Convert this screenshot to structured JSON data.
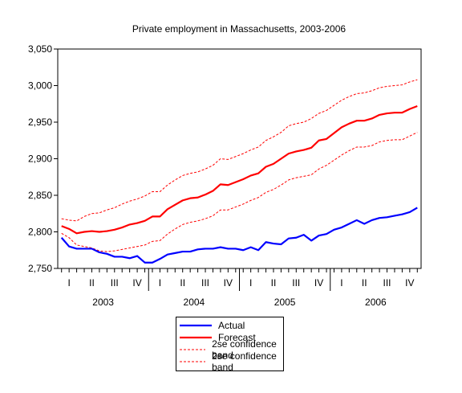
{
  "chart_data": {
    "type": "line",
    "title": "Private employment in Massachusetts, 2003-2006",
    "xlabel": "",
    "ylabel": "",
    "ylim": [
      2750,
      3050
    ],
    "y_ticks": [
      "2,750",
      "2,800",
      "2,850",
      "2,900",
      "2,950",
      "3,000",
      "3,050"
    ],
    "x_quarter_labels": [
      "I",
      "II",
      "III",
      "IV",
      "I",
      "II",
      "III",
      "IV",
      "I",
      "II",
      "III",
      "IV",
      "I",
      "II",
      "III",
      "IV"
    ],
    "x_year_labels": [
      "2003",
      "2004",
      "2005",
      "2006"
    ],
    "grid": false,
    "legend_position": "bottom",
    "x_start": "2003-01",
    "series": [
      {
        "name": "Actual",
        "color": "#0000ff",
        "style": "solid",
        "values": [
          2792,
          2780,
          2777,
          2777,
          2777,
          2772,
          2770,
          2766,
          2766,
          2764,
          2767,
          2758,
          2758,
          2763,
          2769,
          2771,
          2773,
          2773,
          2776,
          2777,
          2777,
          2779,
          2777,
          2777,
          2775,
          2779,
          2775,
          2786,
          2784,
          2783,
          2791,
          2792,
          2796,
          2788,
          2795,
          2797,
          2803,
          2806,
          2811,
          2816,
          2811,
          2816,
          2819,
          2820,
          2822,
          2824,
          2827,
          2833
        ]
      },
      {
        "name": "Forecast",
        "color": "#ff0000",
        "style": "solid",
        "values": [
          2808,
          2804,
          2798,
          2800,
          2801,
          2800,
          2801,
          2803,
          2806,
          2810,
          2812,
          2815,
          2821,
          2821,
          2831,
          2837,
          2843,
          2846,
          2847,
          2851,
          2856,
          2865,
          2864,
          2868,
          2872,
          2877,
          2880,
          2889,
          2893,
          2900,
          2907,
          2910,
          2912,
          2915,
          2925,
          2927,
          2935,
          2943,
          2948,
          2952,
          2952,
          2955,
          2960,
          2962,
          2963,
          2963,
          2968,
          2972
        ]
      },
      {
        "name": "2se confidence band",
        "color": "#ff0000",
        "style": "dashed",
        "values": [
          2818,
          2816,
          2815,
          2821,
          2825,
          2826,
          2830,
          2833,
          2838,
          2842,
          2845,
          2849,
          2855,
          2855,
          2864,
          2871,
          2877,
          2880,
          2882,
          2886,
          2891,
          2900,
          2899,
          2903,
          2907,
          2912,
          2916,
          2925,
          2930,
          2936,
          2945,
          2948,
          2950,
          2955,
          2962,
          2966,
          2973,
          2980,
          2985,
          2989,
          2990,
          2993,
          2997,
          2999,
          3000,
          3001,
          3005,
          3008
        ]
      },
      {
        "name": "2se confidence band",
        "color": "#ff0000",
        "style": "dashed",
        "values": [
          2798,
          2792,
          2782,
          2780,
          2778,
          2774,
          2773,
          2774,
          2776,
          2778,
          2780,
          2782,
          2787,
          2788,
          2797,
          2804,
          2810,
          2813,
          2815,
          2818,
          2822,
          2830,
          2830,
          2834,
          2838,
          2843,
          2847,
          2854,
          2858,
          2864,
          2871,
          2874,
          2876,
          2878,
          2886,
          2891,
          2898,
          2905,
          2911,
          2916,
          2916,
          2918,
          2923,
          2925,
          2926,
          2926,
          2931,
          2936
        ]
      }
    ]
  }
}
